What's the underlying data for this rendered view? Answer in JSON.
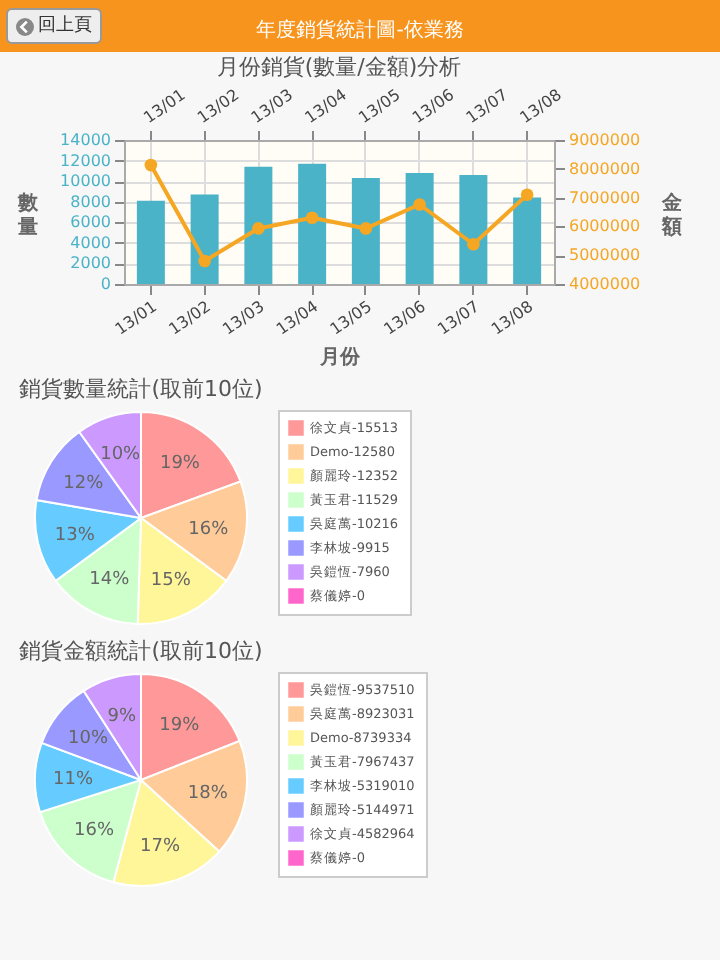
{
  "chart_data": [
    {
      "type": "bar",
      "title": "月份銷貨(數量/金額)分析",
      "xlabel": "月份",
      "ylabel": "數量",
      "y2label": "金額",
      "annotations": [
        "年度銷貨統計圖-依業務",
        "回上頁"
      ],
      "categories": [
        "13/01",
        "13/02",
        "13/03",
        "13/04",
        "13/05",
        "13/06",
        "13/07",
        "13/08"
      ],
      "series": [
        {
          "type": "bar",
          "color": "#4bb3c8",
          "values": [
            8100,
            8700,
            11400,
            11700,
            10300,
            10800,
            10600,
            8400
          ]
        },
        {
          "type": "line",
          "axis": "y2",
          "color": "#f5a623",
          "values": [
            8130000,
            4800000,
            5930000,
            6300000,
            5930000,
            6760000,
            5380000,
            7100000
          ]
        }
      ],
      "ylim": [
        0,
        14000
      ],
      "yticks": [
        0,
        2000,
        4000,
        6000,
        8000,
        10000,
        12000,
        14000
      ],
      "y2lim": [
        4000000,
        9000000
      ],
      "y2ticks": [
        4000000,
        5000000,
        6000000,
        7000000,
        8000000,
        9000000
      ],
      "grid": true,
      "marker": "circle"
    },
    {
      "type": "pie",
      "title": "銷貨數量統計(取前10位)",
      "categories": [
        "徐文貞-15513",
        "Demo-12580",
        "顏麗玲-12352",
        "黃玉君-11529",
        "吳庭萬-10216",
        "李林坡-9915",
        "吳鎧恆-7960",
        "蔡儀婷-0"
      ],
      "values": [
        19.4,
        15.7,
        15.4,
        14.4,
        12.8,
        12.4,
        9.9,
        0
      ],
      "value_labels": [
        "19%",
        "16%",
        "15%",
        "14%",
        "13%",
        "12%",
        "10%",
        null
      ],
      "colors": [
        "#ff9999",
        "#ffcc99",
        "#fff599",
        "#ccffcc",
        "#66ccff",
        "#9999ff",
        "#cc99ff",
        "#ff66cc"
      ],
      "legend": "right"
    },
    {
      "type": "pie",
      "title": "銷貨金額統計(取前10位)",
      "categories": [
        "吳鎧恆-9537510",
        "吳庭萬-8923031",
        "Demo-8739334",
        "黃玉君-7967437",
        "李林坡-5319010",
        "顏麗玲-5144971",
        "徐文貞-4582964",
        "蔡儀婷-0"
      ],
      "values": [
        19.0,
        17.8,
        17.4,
        15.9,
        10.6,
        10.2,
        9.1,
        0
      ],
      "value_labels": [
        "19%",
        "18%",
        "17%",
        "16%",
        "11%",
        "10%",
        "9%",
        null
      ],
      "colors": [
        "#ff9999",
        "#ffcc99",
        "#fff599",
        "#ccffcc",
        "#66ccff",
        "#9999ff",
        "#cc99ff",
        "#ff66cc"
      ],
      "legend": "right"
    }
  ]
}
